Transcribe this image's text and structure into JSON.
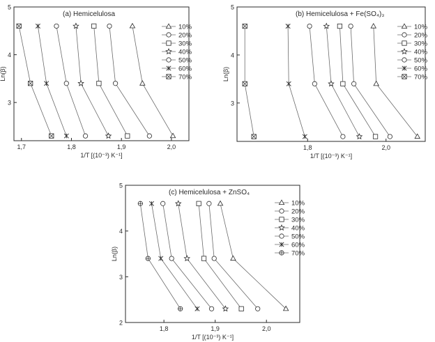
{
  "figure": {
    "ylabel_text": "Ln(β)",
    "xlabel_text": "1/T [(10⁻³) K⁻¹]"
  },
  "chart_data": [
    {
      "type": "line",
      "panel": "a",
      "title": "(a) Hemicelulosa",
      "xlabel": "1/T [(10⁻³) K⁻¹]",
      "ylabel": "Ln(β)",
      "xlim": [
        1.685,
        2.035
      ],
      "ylim": [
        2.2,
        5.0
      ],
      "xticks": [
        1.7,
        1.8,
        1.9,
        2.0
      ],
      "xtick_labels": [
        "1,7",
        "1,8",
        "1,9",
        "2,0"
      ],
      "yticks": [
        3,
        4,
        5
      ],
      "legend_position": "right",
      "series": [
        {
          "name": "10%",
          "marker": "triangle",
          "x": [
            1.922,
            1.942,
            2.003
          ],
          "y": [
            4.6,
            3.4,
            2.3
          ]
        },
        {
          "name": "20%",
          "marker": "circle",
          "x": [
            1.876,
            1.888,
            1.956
          ],
          "y": [
            4.6,
            3.4,
            2.3
          ]
        },
        {
          "name": "30%",
          "marker": "square",
          "x": [
            1.845,
            1.855,
            1.912
          ],
          "y": [
            4.6,
            3.4,
            2.3
          ]
        },
        {
          "name": "40%",
          "marker": "star",
          "x": [
            1.809,
            1.819,
            1.874
          ],
          "y": [
            4.6,
            3.4,
            2.3
          ]
        },
        {
          "name": "50%",
          "marker": "circle",
          "x": [
            1.77,
            1.79,
            1.828
          ],
          "y": [
            4.6,
            3.4,
            2.3
          ]
        },
        {
          "name": "60%",
          "marker": "asterisk",
          "x": [
            1.733,
            1.75,
            1.79
          ],
          "y": [
            4.6,
            3.4,
            2.3
          ]
        },
        {
          "name": "70%",
          "marker": "crossed-square",
          "x": [
            1.695,
            1.718,
            1.76
          ],
          "y": [
            4.6,
            3.4,
            2.3
          ]
        }
      ]
    },
    {
      "type": "line",
      "panel": "b",
      "title": "(b) Hemicelulosa + Fe(SO₄)₃",
      "xlabel": "1/T [(10⁻³) K⁻¹]",
      "ylabel": "Ln(β)",
      "xlim": [
        1.62,
        2.1
      ],
      "ylim": [
        2.2,
        5.0
      ],
      "xticks": [
        1.8,
        2.0
      ],
      "xtick_labels": [
        "1,8",
        "2,0"
      ],
      "yticks": [
        3,
        4,
        5
      ],
      "legend_position": "right",
      "series": [
        {
          "name": "10%",
          "marker": "triangle",
          "x": [
            1.968,
            1.975,
            2.08
          ],
          "y": [
            4.6,
            3.4,
            2.3
          ]
        },
        {
          "name": "20%",
          "marker": "circle",
          "x": [
            1.91,
            1.918,
            2.01
          ],
          "y": [
            4.6,
            3.4,
            2.3
          ]
        },
        {
          "name": "30%",
          "marker": "square",
          "x": [
            1.882,
            1.89,
            1.973
          ],
          "y": [
            4.6,
            3.4,
            2.3
          ]
        },
        {
          "name": "40%",
          "marker": "star",
          "x": [
            1.848,
            1.86,
            1.932
          ],
          "y": [
            4.6,
            3.4,
            2.3
          ]
        },
        {
          "name": "50%",
          "marker": "circle",
          "x": [
            1.805,
            1.818,
            1.89
          ],
          "y": [
            4.6,
            3.4,
            2.3
          ]
        },
        {
          "name": "60%",
          "marker": "asterisk",
          "x": [
            1.75,
            1.752,
            1.793
          ],
          "y": [
            4.6,
            3.4,
            2.3
          ]
        },
        {
          "name": "70%",
          "marker": "crossed-square",
          "x": [
            1.64,
            1.64,
            1.663
          ],
          "y": [
            4.6,
            3.4,
            2.3
          ]
        }
      ]
    },
    {
      "type": "line",
      "panel": "c",
      "title": "(c) Hemicelulosa + ZnSO₄",
      "xlabel": "1/T [(10⁻³) K⁻¹]",
      "ylabel": "Ln(β)",
      "xlim": [
        1.725,
        2.065
      ],
      "ylim": [
        2.0,
        5.0
      ],
      "xticks": [
        1.8,
        1.9,
        2.0
      ],
      "xtick_labels": [
        "1,8",
        "1,9",
        "2,0"
      ],
      "yticks": [
        2,
        3,
        4,
        5
      ],
      "legend_position": "right",
      "series": [
        {
          "name": "10%",
          "marker": "triangle",
          "x": [
            1.91,
            1.935,
            2.038
          ],
          "y": [
            4.6,
            3.4,
            2.3
          ]
        },
        {
          "name": "20%",
          "marker": "circle",
          "x": [
            1.888,
            1.898,
            1.983
          ],
          "y": [
            4.6,
            3.4,
            2.3
          ]
        },
        {
          "name": "30%",
          "marker": "square",
          "x": [
            1.868,
            1.878,
            1.951
          ],
          "y": [
            4.6,
            3.4,
            2.3
          ]
        },
        {
          "name": "40%",
          "marker": "star",
          "x": [
            1.828,
            1.845,
            1.92
          ],
          "y": [
            4.6,
            3.4,
            2.3
          ]
        },
        {
          "name": "50%",
          "marker": "circle",
          "x": [
            1.798,
            1.815,
            1.893
          ],
          "y": [
            4.6,
            3.4,
            2.3
          ]
        },
        {
          "name": "60%",
          "marker": "asterisk",
          "x": [
            1.776,
            1.794,
            1.865
          ],
          "y": [
            4.6,
            3.4,
            2.3
          ]
        },
        {
          "name": "70%",
          "marker": "crossed-circle",
          "x": [
            1.754,
            1.769,
            1.832
          ],
          "y": [
            4.6,
            3.4,
            2.3
          ]
        }
      ]
    }
  ]
}
